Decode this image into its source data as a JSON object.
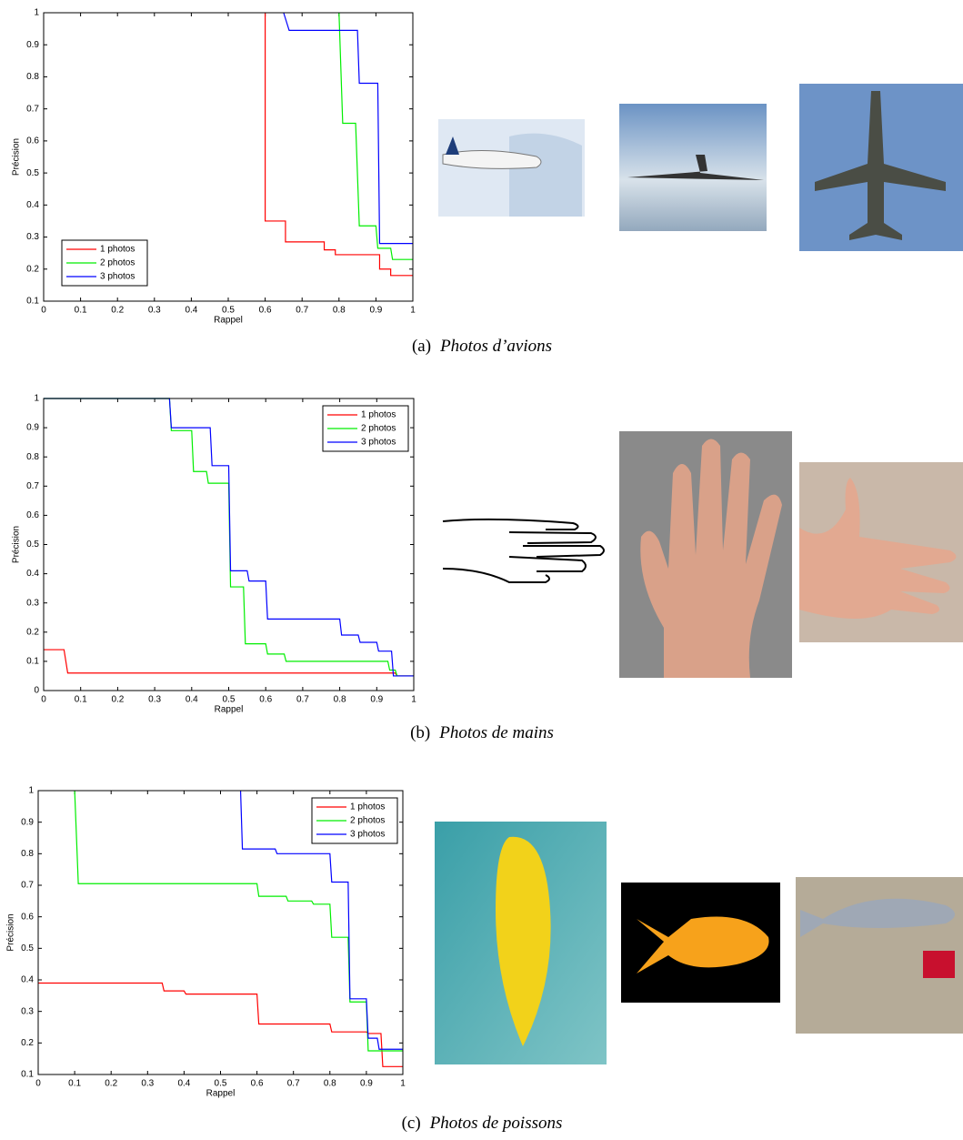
{
  "chart_data": [
    {
      "type": "line",
      "xlabel": "Rappel",
      "ylabel": "Précision",
      "xlim": [
        0,
        1
      ],
      "ylim": [
        0.1,
        1
      ],
      "xticks": [
        0,
        0.1,
        0.2,
        0.3,
        0.4,
        0.5,
        0.6,
        0.7,
        0.8,
        0.9,
        1
      ],
      "yticks": [
        0.1,
        0.2,
        0.3,
        0.4,
        0.5,
        0.6,
        0.7,
        0.8,
        0.9,
        1
      ],
      "legend": "lower left",
      "caption": {
        "label": "(a)",
        "text": "Photos d’avions"
      },
      "series": [
        {
          "name": "1 photos",
          "color": "#ff0000",
          "x": [
            0.6,
            0.6,
            0.655,
            0.655,
            0.76,
            0.76,
            0.79,
            0.79,
            0.91,
            0.91,
            0.94,
            0.94,
            1
          ],
          "y": [
            1,
            0.35,
            0.35,
            0.285,
            0.285,
            0.26,
            0.26,
            0.245,
            0.245,
            0.2,
            0.2,
            0.18,
            0.18
          ]
        },
        {
          "name": "2 photos",
          "color": "#00ee00",
          "x": [
            0.8,
            0.81,
            0.845,
            0.855,
            0.9,
            0.905,
            0.94,
            0.945,
            1
          ],
          "y": [
            1,
            0.655,
            0.655,
            0.335,
            0.335,
            0.265,
            0.265,
            0.23,
            0.23
          ]
        },
        {
          "name": "3 photos",
          "color": "#0000ff",
          "x": [
            0.65,
            0.665,
            0.85,
            0.855,
            0.905,
            0.91,
            1
          ],
          "y": [
            1,
            0.945,
            0.945,
            0.78,
            0.78,
            0.28,
            0.28
          ]
        }
      ]
    },
    {
      "type": "line",
      "xlabel": "Rappel",
      "ylabel": "Précision",
      "xlim": [
        0,
        1
      ],
      "ylim": [
        0,
        1
      ],
      "xticks": [
        0,
        0.1,
        0.2,
        0.3,
        0.4,
        0.5,
        0.6,
        0.7,
        0.8,
        0.9,
        1
      ],
      "yticks": [
        0,
        0.1,
        0.2,
        0.3,
        0.4,
        0.5,
        0.6,
        0.7,
        0.8,
        0.9,
        1
      ],
      "legend": "upper right",
      "caption": {
        "label": "(b)",
        "text": "Photos de mains"
      },
      "series": [
        {
          "name": "1 photos",
          "color": "#ff0000",
          "x": [
            0,
            0.055,
            0.065,
            0.95,
            0.955,
            1
          ],
          "y": [
            0.14,
            0.14,
            0.06,
            0.06,
            0.05,
            0.05
          ]
        },
        {
          "name": "2 photos",
          "color": "#00ee00",
          "x": [
            0,
            0.34,
            0.345,
            0.4,
            0.405,
            0.44,
            0.445,
            0.5,
            0.505,
            0.54,
            0.545,
            0.6,
            0.605,
            0.65,
            0.655,
            0.93,
            0.935,
            0.95,
            0.955,
            1
          ],
          "y": [
            1,
            1,
            0.89,
            0.89,
            0.75,
            0.75,
            0.71,
            0.71,
            0.355,
            0.355,
            0.16,
            0.16,
            0.125,
            0.125,
            0.1,
            0.1,
            0.07,
            0.07,
            0.05,
            0.05
          ]
        },
        {
          "name": "3 photos",
          "color": "#0000ff",
          "x": [
            0,
            0.34,
            0.345,
            0.45,
            0.455,
            0.5,
            0.505,
            0.55,
            0.555,
            0.6,
            0.605,
            0.8,
            0.805,
            0.85,
            0.855,
            0.9,
            0.905,
            0.94,
            0.945,
            1
          ],
          "y": [
            1,
            1,
            0.9,
            0.9,
            0.77,
            0.77,
            0.41,
            0.41,
            0.375,
            0.375,
            0.245,
            0.245,
            0.19,
            0.19,
            0.165,
            0.165,
            0.135,
            0.135,
            0.05,
            0.05
          ]
        }
      ]
    },
    {
      "type": "line",
      "xlabel": "Rappel",
      "ylabel": "Précision",
      "xlim": [
        0,
        1
      ],
      "ylim": [
        0.1,
        1
      ],
      "xticks": [
        0,
        0.1,
        0.2,
        0.3,
        0.4,
        0.5,
        0.6,
        0.7,
        0.8,
        0.9,
        1
      ],
      "yticks": [
        0.1,
        0.2,
        0.3,
        0.4,
        0.5,
        0.6,
        0.7,
        0.8,
        0.9,
        1
      ],
      "legend": "upper right",
      "caption": {
        "label": "(c)",
        "text": "Photos de poissons"
      },
      "series": [
        {
          "name": "1 photos",
          "color": "#ff0000",
          "x": [
            0,
            0.34,
            0.345,
            0.4,
            0.405,
            0.6,
            0.605,
            0.8,
            0.805,
            0.9,
            0.905,
            0.94,
            0.945,
            1
          ],
          "y": [
            0.39,
            0.39,
            0.365,
            0.365,
            0.355,
            0.355,
            0.26,
            0.26,
            0.235,
            0.235,
            0.23,
            0.23,
            0.125,
            0.125
          ]
        },
        {
          "name": "2 photos",
          "color": "#00ee00",
          "x": [
            0.1,
            0.11,
            0.6,
            0.605,
            0.68,
            0.685,
            0.75,
            0.755,
            0.8,
            0.805,
            0.85,
            0.855,
            0.9,
            0.905,
            1
          ],
          "y": [
            1,
            0.705,
            0.705,
            0.665,
            0.665,
            0.65,
            0.65,
            0.64,
            0.64,
            0.535,
            0.535,
            0.33,
            0.33,
            0.175,
            0.175
          ]
        },
        {
          "name": "3 photos",
          "color": "#0000ff",
          "x": [
            0.555,
            0.56,
            0.65,
            0.655,
            0.8,
            0.805,
            0.85,
            0.855,
            0.9,
            0.905,
            0.93,
            0.935,
            1
          ],
          "y": [
            1,
            0.815,
            0.815,
            0.8,
            0.8,
            0.71,
            0.71,
            0.34,
            0.34,
            0.215,
            0.215,
            0.18,
            0.18
          ]
        }
      ]
    }
  ]
}
